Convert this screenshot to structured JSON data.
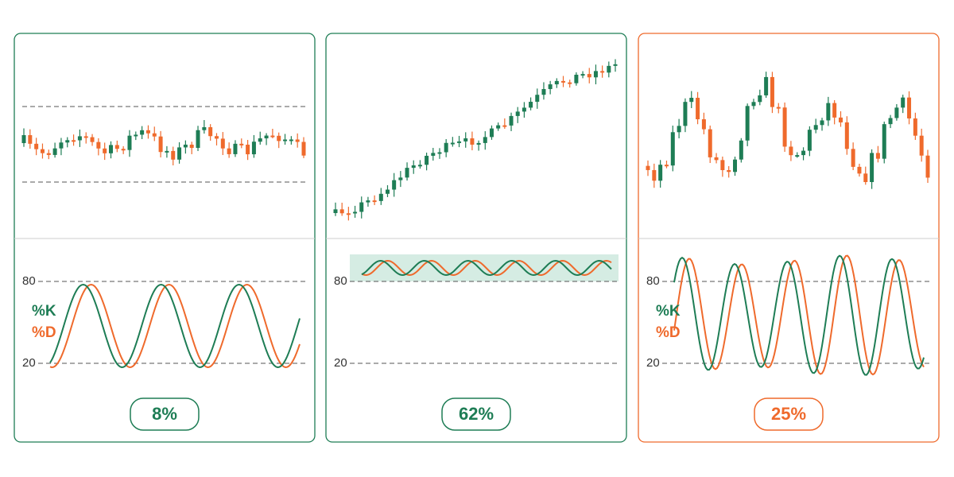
{
  "panels": [
    {
      "levels": {
        "high": "80",
        "low": "20"
      },
      "legend": {
        "k": "%K",
        "d": "%D"
      },
      "badge": "8%"
    },
    {
      "levels": {
        "high": "80",
        "low": "20"
      },
      "badge": "62%"
    },
    {
      "levels": {
        "high": "80",
        "low": "20"
      },
      "legend": {
        "k": "%K",
        "d": "%D"
      },
      "badge": "25%"
    }
  ]
}
